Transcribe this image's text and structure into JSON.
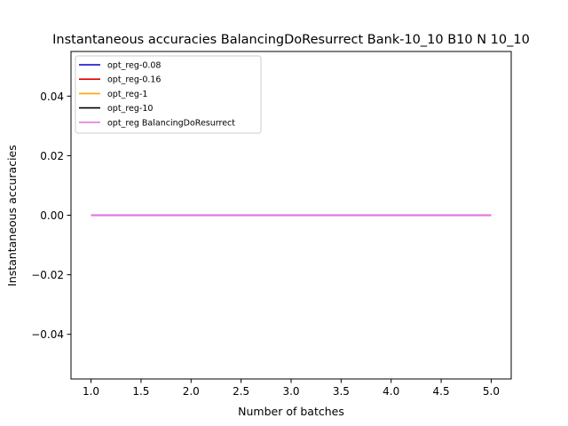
{
  "chart_data": {
    "type": "line",
    "title": "Instantaneous accuracies BalancingDoResurrect Bank-10_10 B10 N 10_10",
    "xlabel": "Number of batches",
    "ylabel": "Instantaneous accuracies",
    "xlim": [
      0.8,
      5.2
    ],
    "ylim": [
      -0.055,
      0.055
    ],
    "x_ticks": [
      1.0,
      1.5,
      2.0,
      2.5,
      3.0,
      3.5,
      4.0,
      4.5,
      5.0
    ],
    "x_tick_labels": [
      "1.0",
      "1.5",
      "2.0",
      "2.5",
      "3.0",
      "3.5",
      "4.0",
      "4.5",
      "5.0"
    ],
    "y_ticks": [
      -0.04,
      -0.02,
      0.0,
      0.02,
      0.04
    ],
    "y_tick_labels": [
      "−0.04",
      "−0.02",
      "0.00",
      "0.02",
      "0.04"
    ],
    "grid": false,
    "legend_position": "top-left",
    "x": [
      1,
      2,
      3,
      4,
      5
    ],
    "series": [
      {
        "name": "opt_reg-0.08",
        "color": "#0000cc",
        "values": [
          0,
          0,
          0,
          0,
          0
        ]
      },
      {
        "name": "opt_reg-0.16",
        "color": "#e00000",
        "values": [
          0,
          0,
          0,
          0,
          0
        ]
      },
      {
        "name": "opt_reg-1",
        "color": "#ffa500",
        "values": [
          0,
          0,
          0,
          0,
          0
        ]
      },
      {
        "name": "opt_reg-10",
        "color": "#000000",
        "values": [
          0,
          0,
          0,
          0,
          0
        ]
      },
      {
        "name": "opt_reg BalancingDoResurrect",
        "color": "#e07ce0",
        "values": [
          0,
          0,
          0,
          0,
          0
        ]
      }
    ]
  }
}
